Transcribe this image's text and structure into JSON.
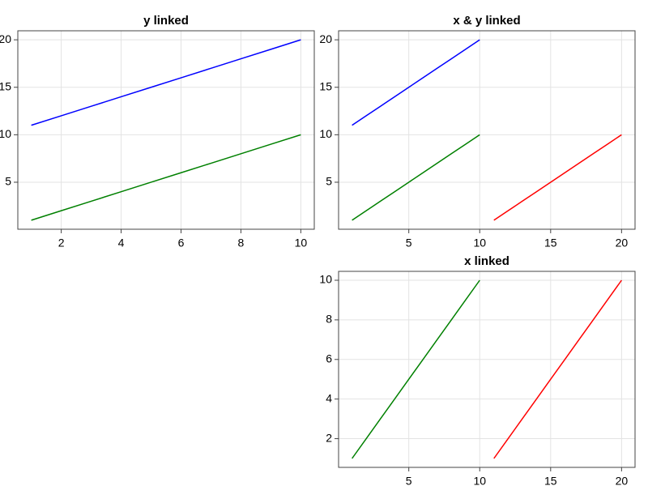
{
  "chart_data": [
    {
      "type": "line",
      "title": "y linked",
      "xlim": [
        0.55,
        10.45
      ],
      "ylim": [
        0.05,
        20.95
      ],
      "xticks": [
        2,
        4,
        6,
        8,
        10
      ],
      "yticks": [
        5,
        10,
        15,
        20
      ],
      "grid": true,
      "series": [
        {
          "color": "#0000ff",
          "x": [
            1,
            2,
            3,
            4,
            5,
            6,
            7,
            8,
            9,
            10
          ],
          "values": [
            11,
            12,
            13,
            14,
            15,
            16,
            17,
            18,
            19,
            20
          ]
        },
        {
          "color": "#008000",
          "x": [
            1,
            2,
            3,
            4,
            5,
            6,
            7,
            8,
            9,
            10
          ],
          "values": [
            1,
            2,
            3,
            4,
            5,
            6,
            7,
            8,
            9,
            10
          ]
        }
      ]
    },
    {
      "type": "line",
      "title": "x & y linked",
      "xlim": [
        0.05,
        20.95
      ],
      "ylim": [
        0.05,
        20.95
      ],
      "xticks": [
        5,
        10,
        15,
        20
      ],
      "yticks": [
        5,
        10,
        15,
        20
      ],
      "grid": true,
      "series": [
        {
          "color": "#0000ff",
          "x": [
            1,
            2,
            3,
            4,
            5,
            6,
            7,
            8,
            9,
            10
          ],
          "values": [
            11,
            12,
            13,
            14,
            15,
            16,
            17,
            18,
            19,
            20
          ]
        },
        {
          "color": "#008000",
          "x": [
            1,
            2,
            3,
            4,
            5,
            6,
            7,
            8,
            9,
            10
          ],
          "values": [
            1,
            2,
            3,
            4,
            5,
            6,
            7,
            8,
            9,
            10
          ]
        },
        {
          "color": "#ff0000",
          "x": [
            11,
            12,
            13,
            14,
            15,
            16,
            17,
            18,
            19,
            20
          ],
          "values": [
            1,
            2,
            3,
            4,
            5,
            6,
            7,
            8,
            9,
            10
          ]
        }
      ]
    },
    {
      "type": "line",
      "title": "x linked",
      "xlim": [
        0.05,
        20.95
      ],
      "ylim": [
        0.55,
        10.45
      ],
      "xticks": [
        5,
        10,
        15,
        20
      ],
      "yticks": [
        2,
        4,
        6,
        8,
        10
      ],
      "grid": true,
      "series": [
        {
          "color": "#008000",
          "x": [
            1,
            2,
            3,
            4,
            5,
            6,
            7,
            8,
            9,
            10
          ],
          "values": [
            1,
            2,
            3,
            4,
            5,
            6,
            7,
            8,
            9,
            10
          ]
        },
        {
          "color": "#ff0000",
          "x": [
            11,
            12,
            13,
            14,
            15,
            16,
            17,
            18,
            19,
            20
          ],
          "values": [
            1,
            2,
            3,
            4,
            5,
            6,
            7,
            8,
            9,
            10
          ]
        }
      ]
    }
  ]
}
